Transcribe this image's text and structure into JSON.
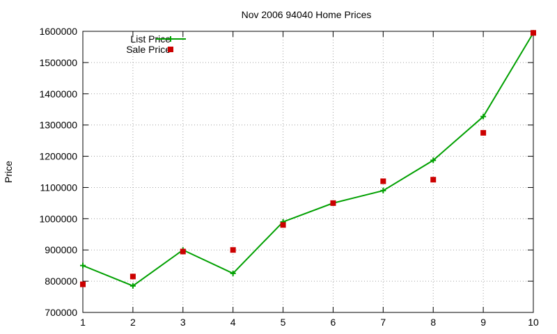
{
  "chart_data": {
    "type": "line",
    "title": "Nov 2006 94040 Home Prices",
    "xlabel": "",
    "ylabel": "Price",
    "x": [
      1,
      2,
      3,
      4,
      5,
      6,
      7,
      8,
      9,
      10
    ],
    "xlim": [
      1,
      10
    ],
    "ylim": [
      700000,
      1600000
    ],
    "yticks": [
      700000,
      800000,
      900000,
      1000000,
      1100000,
      1200000,
      1300000,
      1400000,
      1500000,
      1600000
    ],
    "xticks": [
      1,
      2,
      3,
      4,
      5,
      6,
      7,
      8,
      9,
      10
    ],
    "grid": true,
    "legend_position": "top-left",
    "series": [
      {
        "name": "List Price",
        "style": "line-with-plus-markers",
        "color": "#00a000",
        "values": [
          850000,
          785000,
          900000,
          825000,
          990000,
          1050000,
          1090000,
          1187000,
          1327000,
          1595000
        ]
      },
      {
        "name": "Sale Price",
        "style": "square-markers",
        "color": "#cc0000",
        "values": [
          790000,
          815000,
          895000,
          900000,
          980000,
          1050000,
          1120000,
          1125000,
          1275000,
          1595000
        ]
      }
    ]
  }
}
